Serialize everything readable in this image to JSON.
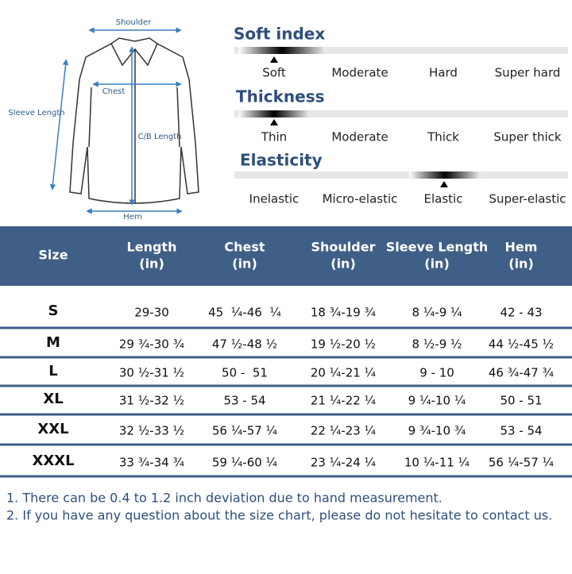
{
  "diagram": {
    "labels": [
      "Shoulder",
      "Chest",
      "Sleeve Length",
      "C/B Length",
      "Hem"
    ]
  },
  "indices": [
    {
      "title": "Soft index",
      "levels": [
        "Soft",
        "Moderate",
        "Hard",
        "Super hard"
      ]
    },
    {
      "title": "Thickness",
      "levels": [
        "Thin",
        "Moderate",
        "Thick",
        "Super thick"
      ]
    },
    {
      "title": "Elasticity",
      "levels": [
        "Inelastic",
        "Micro-elastic",
        "Elastic",
        "Super-elastic"
      ]
    }
  ],
  "table": {
    "header": [
      [
        "Size"
      ],
      [
        "Length",
        "(in)"
      ],
      [
        "Chest",
        "(in)"
      ],
      [
        "Shoulder",
        "(in)"
      ],
      [
        "Sleeve Length",
        "(in)"
      ],
      [
        "Hem",
        "(in)"
      ]
    ],
    "rows": [
      [
        "S",
        "29-30",
        "45  ¼-46  ¼",
        "18 ¾-19 ¾",
        "8 ¼-9 ¼",
        "42 - 43"
      ],
      [
        "M",
        "29 ¾-30 ¾",
        "47 ½-48 ½",
        "19 ½-20 ½",
        "8 ½-9 ½",
        "44 ½-45 ½"
      ],
      [
        "L",
        "30 ½-31 ½",
        "50 -  51",
        "20 ¼-21 ¼",
        "9 - 10",
        "46 ¾-47 ¾"
      ],
      [
        "XL",
        "31 ½-32 ½",
        "53 - 54",
        "21 ¼-22 ¼",
        "9 ¼-10 ¼",
        "50 - 51"
      ],
      [
        "XXL",
        "32 ½-33 ½",
        "56 ¼-57 ¼",
        "22 ¼-23 ¼",
        "9 ¾-10 ¾",
        "53 - 54"
      ],
      [
        "XXXL",
        "33 ¾-34 ¾",
        "59 ¼-60 ¼",
        "23 ¼-24 ¼",
        "10 ¼-11 ¼",
        "56 ¼-57 ¼"
      ]
    ]
  },
  "notes": [
    "1. There can be 0.4 to 1.2 inch deviation due to hand measurement.",
    "2. If you have any question about the size chart, please do not hesitate to contact us."
  ]
}
